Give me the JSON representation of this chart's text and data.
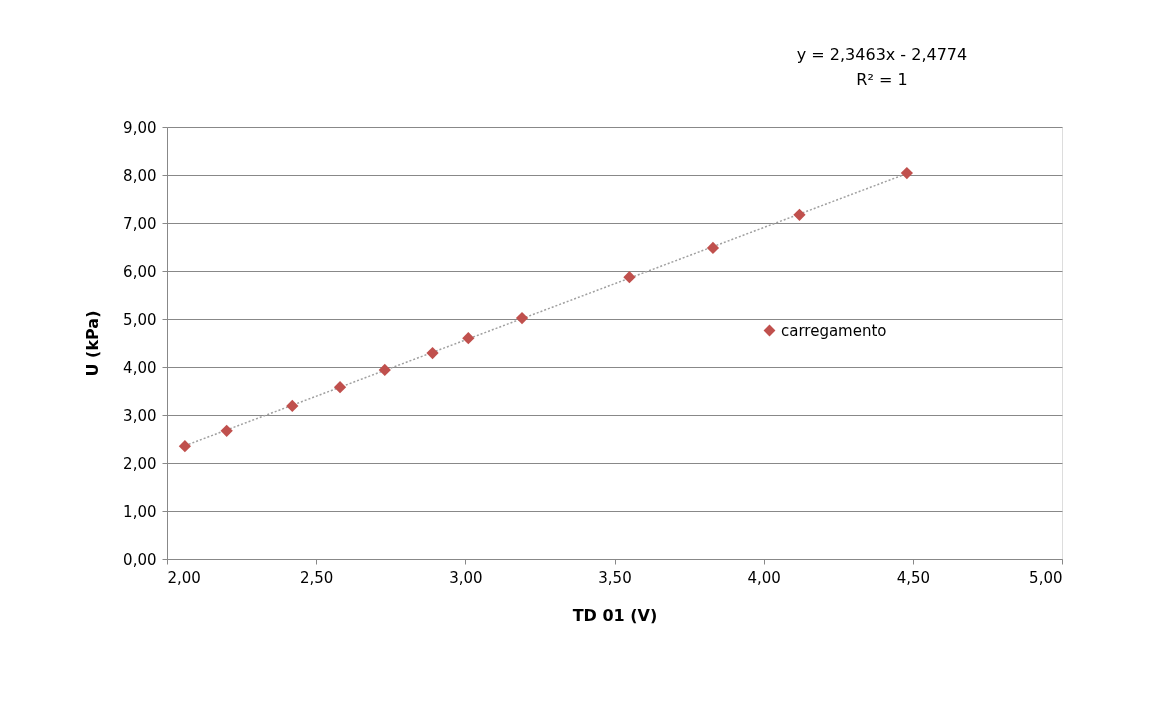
{
  "chart_data": {
    "type": "scatter",
    "xlabel": "TD 01 (V)",
    "ylabel": "U (kPa)",
    "annotations": [
      "y = 2,3463x - 2,4774",
      "R² = 1"
    ],
    "series": [
      {
        "name": "carregamento",
        "color": "#c0504d",
        "marker": "diamond",
        "x": [
          2.06,
          2.2,
          2.42,
          2.58,
          2.73,
          2.89,
          3.01,
          3.19,
          3.55,
          3.83,
          4.12,
          4.48
        ],
        "values": [
          2.35,
          2.67,
          3.19,
          3.58,
          3.94,
          4.29,
          4.6,
          5.02,
          5.87,
          6.48,
          7.17,
          8.04
        ]
      },
      {
        "type": "line",
        "color": "#a0a0a0",
        "line_style": "dotted",
        "marker": "none",
        "x": [
          2.06,
          4.48
        ],
        "values": [
          2.36,
          8.03
        ]
      }
    ],
    "xlim": [
      2,
      5
    ],
    "ylim": [
      0,
      9
    ],
    "xticks": [
      {
        "value": 2,
        "label": "2,00"
      },
      {
        "value": 2.5,
        "label": "2,50"
      },
      {
        "value": 3,
        "label": "3,00"
      },
      {
        "value": 3.5,
        "label": "3,50"
      },
      {
        "value": 4,
        "label": "4,00"
      },
      {
        "value": 4.5,
        "label": "4,50"
      },
      {
        "value": 5,
        "label": "5,00"
      }
    ],
    "yticks": [
      {
        "value": 0,
        "label": "0,00"
      },
      {
        "value": 1,
        "label": "1,00"
      },
      {
        "value": 2,
        "label": "2,00"
      },
      {
        "value": 3,
        "label": "3,00"
      },
      {
        "value": 4,
        "label": "4,00"
      },
      {
        "value": 5,
        "label": "5,00"
      },
      {
        "value": 6,
        "label": "6,00"
      },
      {
        "value": 7,
        "label": "7,00"
      },
      {
        "value": 8,
        "label": "8,00"
      },
      {
        "value": 9,
        "label": "9,00"
      }
    ],
    "grid": "y",
    "legend": "right"
  }
}
